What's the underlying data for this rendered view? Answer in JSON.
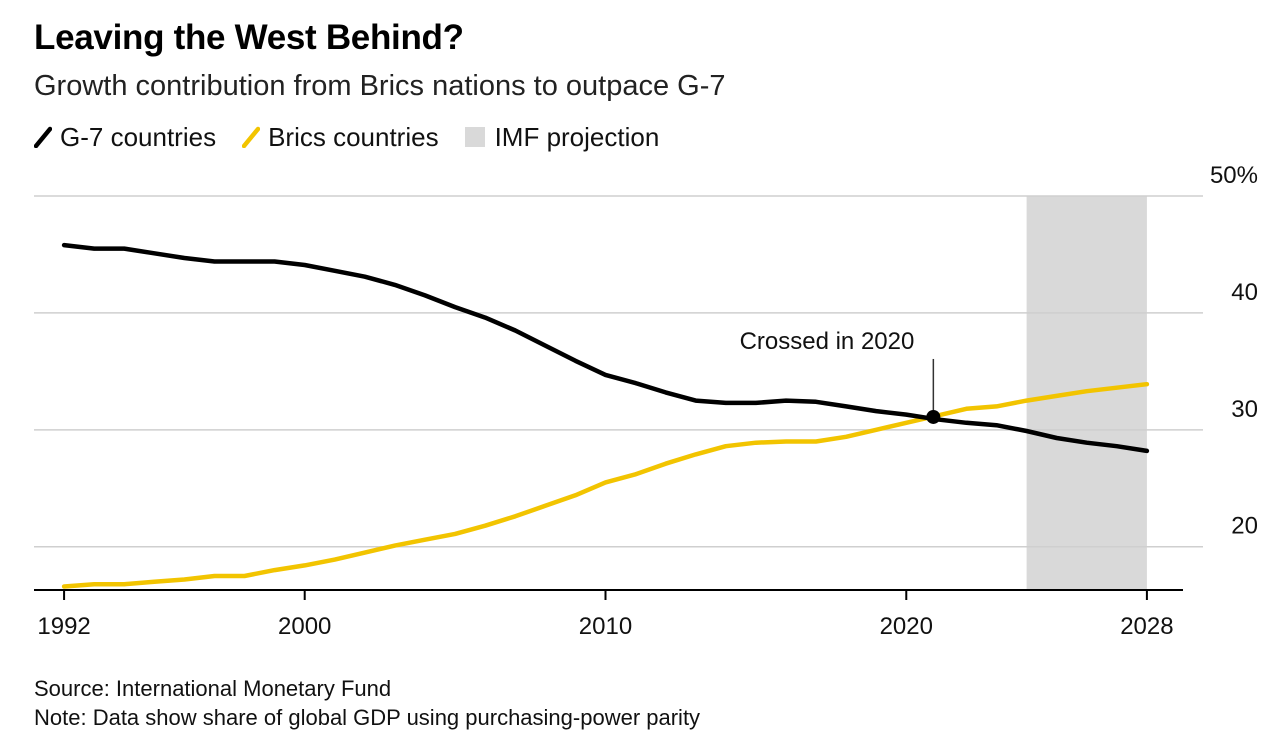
{
  "title": "Leaving the West Behind?",
  "subtitle": "Growth contribution from Brics nations to outpace G-7",
  "legend": [
    {
      "label": "G-7 countries",
      "color": "#000000",
      "kind": "line"
    },
    {
      "label": "Brics countries",
      "color": "#f2c400",
      "kind": "line"
    },
    {
      "label": "IMF projection",
      "color": "#d9d9d9",
      "kind": "box"
    }
  ],
  "annotation": {
    "text": "Crossed in 2020",
    "x": 2020.9,
    "y": 31.1
  },
  "source": "Source: International Monetary Fund",
  "note": "Note: Data show share of global GDP using purchasing-power parity",
  "chart_data": {
    "type": "line",
    "xlim": [
      1991,
      2029.2
    ],
    "ylim": [
      16.3,
      50
    ],
    "y_ticks": [
      {
        "value": 20,
        "label": "20"
      },
      {
        "value": 30,
        "label": "30"
      },
      {
        "value": 40,
        "label": "40"
      },
      {
        "value": 50,
        "label": "50%"
      }
    ],
    "x_ticks": [
      {
        "value": 1992,
        "label": "1992"
      },
      {
        "value": 2000,
        "label": "2000"
      },
      {
        "value": 2010,
        "label": "2010"
      },
      {
        "value": 2020,
        "label": "2020"
      },
      {
        "value": 2028,
        "label": "2028"
      }
    ],
    "projection_range": [
      2024,
      2028
    ],
    "grid": true,
    "x": [
      1992,
      1993,
      1994,
      1995,
      1996,
      1997,
      1998,
      1999,
      2000,
      2001,
      2002,
      2003,
      2004,
      2005,
      2006,
      2007,
      2008,
      2009,
      2010,
      2011,
      2012,
      2013,
      2014,
      2015,
      2016,
      2017,
      2018,
      2019,
      2020,
      2021,
      2022,
      2023,
      2024,
      2025,
      2026,
      2027,
      2028
    ],
    "series": [
      {
        "name": "G-7 countries",
        "color": "#000000",
        "values": [
          45.8,
          45.5,
          45.5,
          45.1,
          44.7,
          44.4,
          44.4,
          44.4,
          44.1,
          43.6,
          43.1,
          42.4,
          41.5,
          40.5,
          39.6,
          38.5,
          37.2,
          35.9,
          34.7,
          34.0,
          33.2,
          32.5,
          32.3,
          32.3,
          32.5,
          32.4,
          32.0,
          31.6,
          31.3,
          30.9,
          30.6,
          30.4,
          29.9,
          29.3,
          28.9,
          28.6,
          28.2
        ]
      },
      {
        "name": "Brics countries",
        "color": "#f2c400",
        "values": [
          16.6,
          16.8,
          16.8,
          17.0,
          17.2,
          17.5,
          17.5,
          18.0,
          18.4,
          18.9,
          19.5,
          20.1,
          20.6,
          21.1,
          21.8,
          22.6,
          23.5,
          24.4,
          25.5,
          26.2,
          27.1,
          27.9,
          28.6,
          28.9,
          29.0,
          29.0,
          29.4,
          30.0,
          30.6,
          31.2,
          31.8,
          32.0,
          32.5,
          32.9,
          33.3,
          33.6,
          33.9
        ]
      }
    ]
  }
}
